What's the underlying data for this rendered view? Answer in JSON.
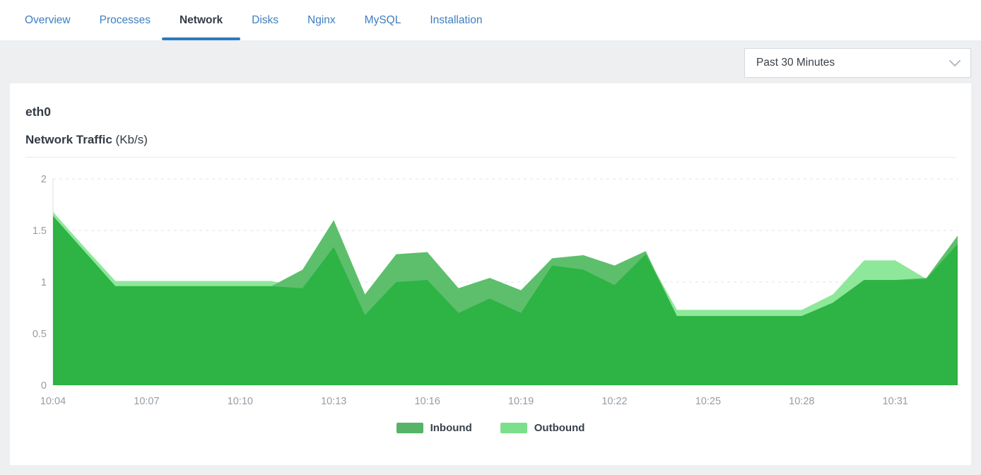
{
  "tabs": {
    "items": [
      {
        "id": "overview",
        "label": "Overview",
        "active": false
      },
      {
        "id": "processes",
        "label": "Processes",
        "active": false
      },
      {
        "id": "network",
        "label": "Network",
        "active": true
      },
      {
        "id": "disks",
        "label": "Disks",
        "active": false
      },
      {
        "id": "nginx",
        "label": "Nginx",
        "active": false
      },
      {
        "id": "mysql",
        "label": "MySQL",
        "active": false
      },
      {
        "id": "installation",
        "label": "Installation",
        "active": false
      }
    ],
    "active_underline_color": "#2b7ac0",
    "link_color": "#3e7ebf"
  },
  "toolbar": {
    "time_range_value": "Past 30 Minutes"
  },
  "panel": {
    "interface_name": "eth0",
    "chart_title": "Network Traffic",
    "chart_unit": "(Kb/s)"
  },
  "chart_data": {
    "type": "area",
    "title": "Network Traffic (Kb/s)",
    "x": [
      "10:04",
      "10:05",
      "10:06",
      "10:07",
      "10:08",
      "10:09",
      "10:10",
      "10:11",
      "10:12",
      "10:13",
      "10:14",
      "10:15",
      "10:16",
      "10:17",
      "10:18",
      "10:19",
      "10:20",
      "10:21",
      "10:22",
      "10:23",
      "10:24",
      "10:25",
      "10:26",
      "10:27",
      "10:28",
      "10:29",
      "10:30",
      "10:31",
      "10:32",
      "10:33"
    ],
    "x_tick_labels": [
      "10:04",
      "10:07",
      "10:10",
      "10:13",
      "10:16",
      "10:19",
      "10:22",
      "10:25",
      "10:28",
      "10:31"
    ],
    "series": [
      {
        "name": "Inbound",
        "color": "#55b467",
        "fill": "#5dbf6c",
        "values": [
          1.64,
          1.3,
          0.96,
          0.96,
          0.96,
          0.96,
          0.96,
          0.96,
          1.12,
          1.6,
          0.88,
          1.27,
          1.29,
          0.94,
          1.04,
          0.92,
          1.23,
          1.26,
          1.16,
          1.3,
          0.67,
          0.67,
          0.67,
          0.67,
          0.67,
          0.8,
          1.02,
          1.02,
          1.04,
          1.45
        ]
      },
      {
        "name": "Outbound",
        "color": "#7ce08a",
        "fill": "#8ee89a",
        "values": [
          1.68,
          1.34,
          1.01,
          1.01,
          1.01,
          1.01,
          1.01,
          1.01,
          0.94,
          1.34,
          0.68,
          1.0,
          1.02,
          0.7,
          0.84,
          0.7,
          1.16,
          1.12,
          0.97,
          1.27,
          0.73,
          0.73,
          0.73,
          0.73,
          0.73,
          0.88,
          1.21,
          1.21,
          1.03,
          1.37
        ]
      }
    ],
    "overlap_fill": "#2eb345",
    "ylim": [
      0,
      2
    ],
    "yticks": [
      0,
      0.5,
      1,
      1.5,
      2
    ],
    "grid": "dashed",
    "grid_color": "#e1e3e6",
    "axis_color": "#dcdfe2",
    "tick_label_color": "#969da5",
    "legend_position": "bottom-center"
  },
  "legend": {
    "items": [
      {
        "label": "Inbound",
        "color": "#55b467"
      },
      {
        "label": "Outbound",
        "color": "#7ce08a"
      }
    ]
  }
}
